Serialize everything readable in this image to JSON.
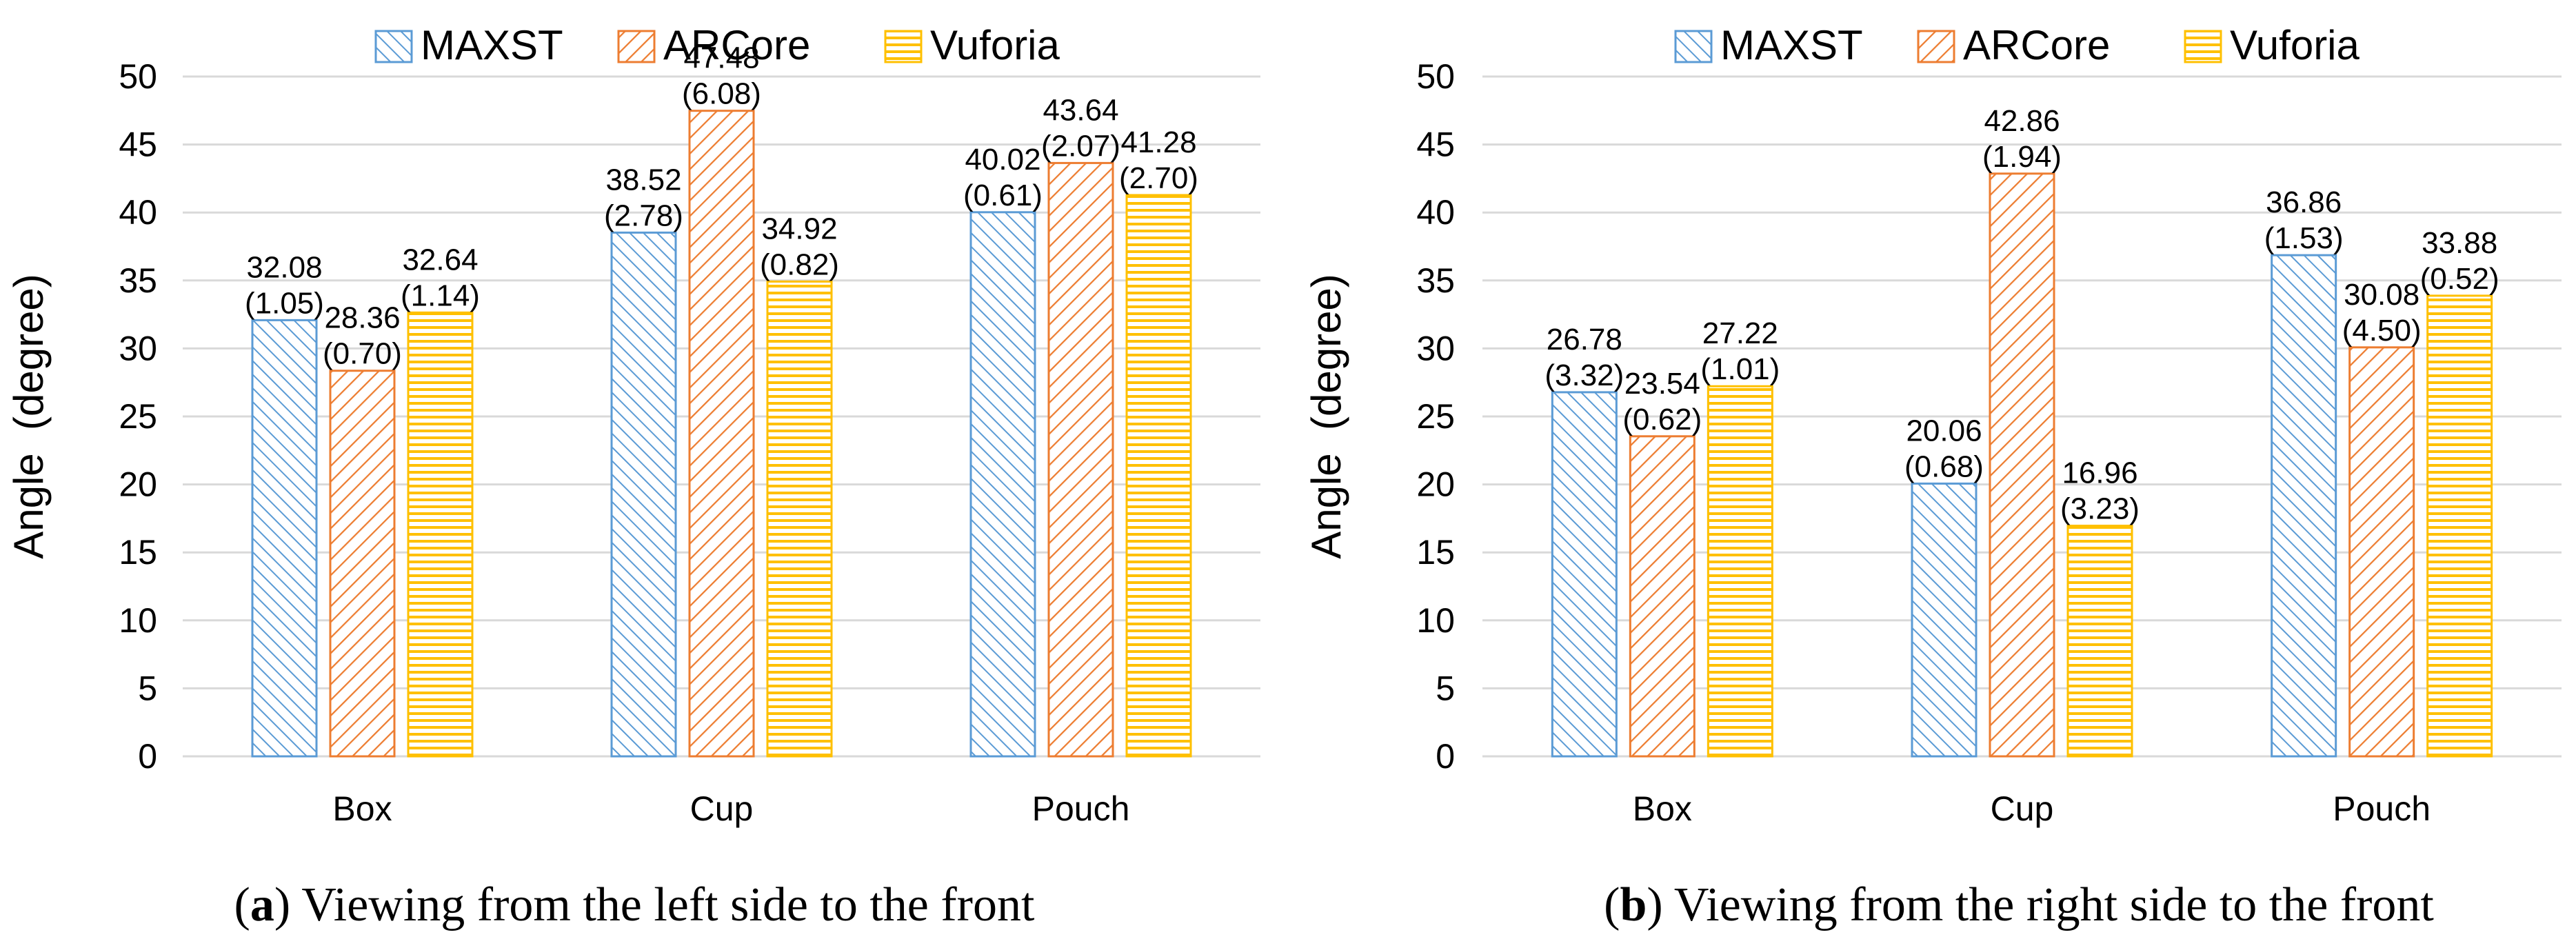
{
  "colors": {
    "MAXST": "#5B9BD5",
    "ARCore": "#ED7D31",
    "Vuforia": "#FFC000",
    "grid": "#D9D9D9"
  },
  "legend": [
    "MAXST",
    "ARCore",
    "Vuforia"
  ],
  "chart_data": [
    {
      "type": "bar",
      "panel_label": "a",
      "caption": "Viewing from the left side to the front",
      "categories": [
        "Box",
        "Cup",
        "Pouch"
      ],
      "ylabel": "Angle  (degree)",
      "ylim": [
        0,
        50
      ],
      "yticks": [
        0,
        5,
        10,
        15,
        20,
        25,
        30,
        35,
        40,
        45,
        50
      ],
      "grid": true,
      "legend_position": "top",
      "series": [
        {
          "name": "MAXST",
          "values": [
            32.08,
            38.52,
            40.02
          ],
          "labels": [
            "32.08",
            "38.52",
            "40.02"
          ],
          "sd": [
            "(1.05)",
            "(2.78)",
            "(0.61)"
          ]
        },
        {
          "name": "ARCore",
          "values": [
            28.36,
            47.48,
            43.64
          ],
          "labels": [
            "28.36",
            "47.48",
            "43.64"
          ],
          "sd": [
            "(0.70)",
            "(6.08)",
            "(2.07)"
          ]
        },
        {
          "name": "Vuforia",
          "values": [
            32.64,
            34.92,
            41.28
          ],
          "labels": [
            "32.64",
            "34.92",
            "41.28"
          ],
          "sd": [
            "(1.14)",
            "(0.82)",
            "(2.70)"
          ]
        }
      ]
    },
    {
      "type": "bar",
      "panel_label": "b",
      "caption": "Viewing from the right side to the front",
      "categories": [
        "Box",
        "Cup",
        "Pouch"
      ],
      "ylabel": "Angle  (degree)",
      "ylim": [
        0,
        50
      ],
      "yticks": [
        0,
        5,
        10,
        15,
        20,
        25,
        30,
        35,
        40,
        45,
        50
      ],
      "grid": true,
      "legend_position": "top",
      "series": [
        {
          "name": "MAXST",
          "values": [
            26.78,
            20.06,
            36.86
          ],
          "labels": [
            "26.78",
            "20.06",
            "36.86"
          ],
          "sd": [
            "(3.32)",
            "(0.68)",
            "(1.53)"
          ]
        },
        {
          "name": "ARCore",
          "values": [
            23.54,
            42.86,
            30.08
          ],
          "labels": [
            "23.54",
            "42.86",
            "30.08"
          ],
          "sd": [
            "(0.62)",
            "(1.94)",
            "(4.50)"
          ]
        },
        {
          "name": "Vuforia",
          "values": [
            27.22,
            16.96,
            33.88
          ],
          "labels": [
            "27.22",
            "16.96",
            "33.88"
          ],
          "sd": [
            "(1.01)",
            "(3.23)",
            "(0.52)"
          ]
        }
      ]
    }
  ]
}
